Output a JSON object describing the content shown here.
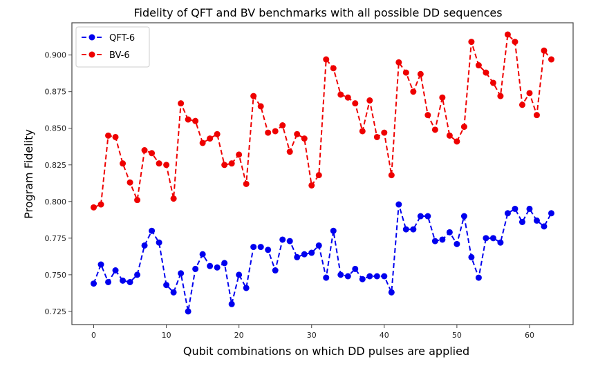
{
  "chart_data": {
    "type": "line",
    "title": "Fidelity of QFT and BV benchmarks with all possible DD sequences",
    "xlabel": "Qubit combinations on which DD pulses are applied",
    "ylabel": "Program Fidelity",
    "xlim": [
      -3,
      66
    ],
    "ylim": [
      0.716,
      0.922
    ],
    "xticks": [
      0,
      10,
      20,
      30,
      40,
      50,
      60
    ],
    "xtick_labels": [
      "0",
      "10",
      "20",
      "30",
      "40",
      "50",
      "60"
    ],
    "yticks": [
      0.725,
      0.75,
      0.775,
      0.8,
      0.825,
      0.85,
      0.875,
      0.9
    ],
    "ytick_labels": [
      "0.725",
      "0.750",
      "0.775",
      "0.800",
      "0.825",
      "0.850",
      "0.875",
      "0.900"
    ],
    "grid": false,
    "legend_position": "top-left",
    "x": [
      0,
      1,
      2,
      3,
      4,
      5,
      6,
      7,
      8,
      9,
      10,
      11,
      12,
      13,
      14,
      15,
      16,
      17,
      18,
      19,
      20,
      21,
      22,
      23,
      24,
      25,
      26,
      27,
      28,
      29,
      30,
      31,
      32,
      33,
      34,
      35,
      36,
      37,
      38,
      39,
      40,
      41,
      42,
      43,
      44,
      45,
      46,
      47,
      48,
      49,
      50,
      51,
      52,
      53,
      54,
      55,
      56,
      57,
      58,
      59,
      60,
      61,
      62,
      63
    ],
    "series": [
      {
        "name": "QFT-6",
        "color": "#0000ee",
        "linestyle": "dashed",
        "marker": "circle",
        "values": [
          0.744,
          0.757,
          0.745,
          0.753,
          0.746,
          0.745,
          0.75,
          0.77,
          0.78,
          0.772,
          0.743,
          0.738,
          0.751,
          0.725,
          0.754,
          0.764,
          0.756,
          0.755,
          0.758,
          0.73,
          0.75,
          0.741,
          0.769,
          0.769,
          0.767,
          0.753,
          0.774,
          0.773,
          0.762,
          0.764,
          0.765,
          0.77,
          0.748,
          0.78,
          0.75,
          0.749,
          0.754,
          0.747,
          0.749,
          0.749,
          0.749,
          0.738,
          0.798,
          0.781,
          0.781,
          0.79,
          0.79,
          0.773,
          0.774,
          0.779,
          0.771,
          0.79,
          0.762,
          0.748,
          0.775,
          0.775,
          0.772,
          0.792,
          0.795,
          0.786,
          0.795,
          0.787,
          0.783,
          0.792
        ]
      },
      {
        "name": "BV-6",
        "color": "#ee0000",
        "linestyle": "dashed",
        "marker": "circle",
        "values": [
          0.796,
          0.798,
          0.845,
          0.844,
          0.826,
          0.813,
          0.801,
          0.835,
          0.833,
          0.826,
          0.825,
          0.802,
          0.867,
          0.856,
          0.855,
          0.84,
          0.843,
          0.846,
          0.825,
          0.826,
          0.832,
          0.812,
          0.872,
          0.865,
          0.847,
          0.848,
          0.852,
          0.834,
          0.846,
          0.843,
          0.811,
          0.818,
          0.897,
          0.891,
          0.873,
          0.871,
          0.867,
          0.848,
          0.869,
          0.844,
          0.847,
          0.818,
          0.895,
          0.888,
          0.875,
          0.887,
          0.859,
          0.849,
          0.871,
          0.845,
          0.841,
          0.851,
          0.909,
          0.893,
          0.888,
          0.881,
          0.872,
          0.914,
          0.909,
          0.866,
          0.874,
          0.859,
          0.903,
          0.897
        ]
      }
    ]
  }
}
